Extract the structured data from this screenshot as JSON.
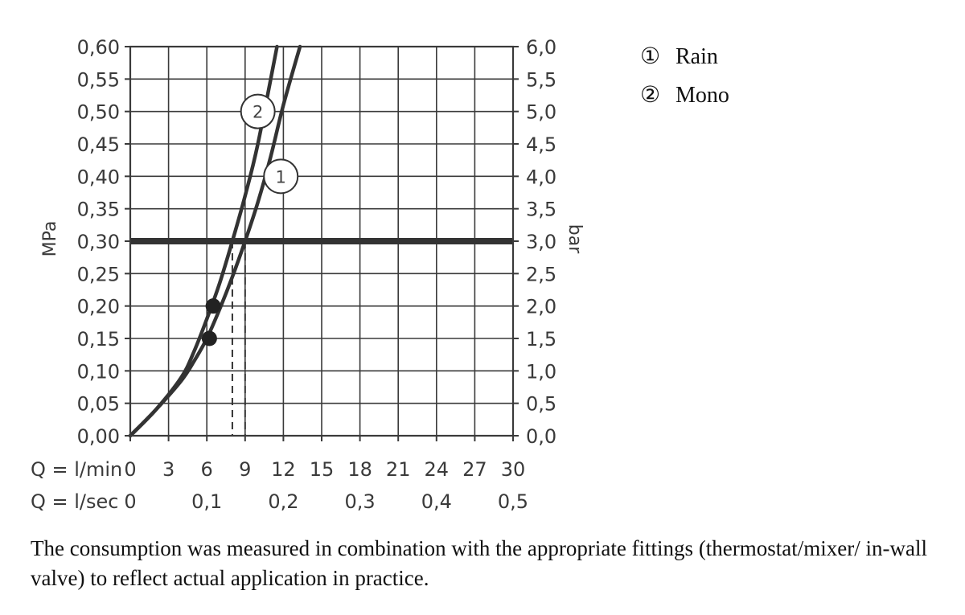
{
  "chart_data": {
    "type": "line",
    "title": "",
    "left_axis": {
      "label": "MPa",
      "range": [
        0,
        0.6
      ],
      "ticks": [
        "0,00",
        "0,05",
        "0,10",
        "0,15",
        "0,20",
        "0,25",
        "0,30",
        "0,35",
        "0,40",
        "0,45",
        "0,50",
        "0,55",
        "0,60"
      ]
    },
    "right_axis": {
      "label": "bar",
      "range": [
        0,
        6
      ],
      "ticks": [
        "0,0",
        "0,5",
        "1,0",
        "1,5",
        "2,0",
        "2,5",
        "3,0",
        "3,5",
        "4,0",
        "4,5",
        "5,0",
        "5,5",
        "6,0"
      ]
    },
    "x_axis": {
      "range": [
        0,
        30
      ],
      "rows": [
        {
          "label": "Q = l/min",
          "ticks": [
            {
              "x": 0,
              "text": "0"
            },
            {
              "x": 3,
              "text": "3"
            },
            {
              "x": 6,
              "text": "6"
            },
            {
              "x": 9,
              "text": "9"
            },
            {
              "x": 12,
              "text": "12"
            },
            {
              "x": 15,
              "text": "15"
            },
            {
              "x": 18,
              "text": "18"
            },
            {
              "x": 21,
              "text": "21"
            },
            {
              "x": 24,
              "text": "24"
            },
            {
              "x": 27,
              "text": "27"
            },
            {
              "x": 30,
              "text": "30"
            }
          ]
        },
        {
          "label": "Q = l/sec",
          "ticks": [
            {
              "x": 0,
              "text": "0"
            },
            {
              "x": 6,
              "text": "0,1"
            },
            {
              "x": 12,
              "text": "0,2"
            },
            {
              "x": 18,
              "text": "0,3"
            },
            {
              "x": 24,
              "text": "0,4"
            },
            {
              "x": 30,
              "text": "0,5"
            }
          ]
        }
      ]
    },
    "grid": true,
    "reference_line": {
      "pressure_mpa": 0.3
    },
    "series": [
      {
        "name": "Rain",
        "marker": "1",
        "color": "#333333",
        "x": [
          0,
          2,
          4,
          5,
          6,
          7,
          8,
          9,
          10,
          11,
          12,
          13.3
        ],
        "y": [
          0,
          0.04,
          0.085,
          0.115,
          0.15,
          0.195,
          0.245,
          0.3,
          0.36,
          0.43,
          0.51,
          0.6
        ],
        "operating_point": {
          "x": 6.2,
          "y": 0.15
        },
        "flow_at_reference": 9.0,
        "label_at": {
          "x": 11.8,
          "y": 0.4
        }
      },
      {
        "name": "Mono",
        "marker": "2",
        "color": "#333333",
        "x": [
          0,
          2,
          4,
          5,
          6,
          7,
          8,
          9,
          10,
          11.5
        ],
        "y": [
          0,
          0.04,
          0.09,
          0.13,
          0.18,
          0.235,
          0.3,
          0.37,
          0.45,
          0.6
        ],
        "operating_point": {
          "x": 6.5,
          "y": 0.2
        },
        "flow_at_reference": 8.0,
        "label_at": {
          "x": 10.0,
          "y": 0.5
        }
      }
    ],
    "legend": [
      {
        "marker": "①",
        "name": "Rain"
      },
      {
        "marker": "②",
        "name": "Mono"
      }
    ]
  },
  "footnote": "The consumption was measured in combination with the appropriate fittings (thermostat/mixer/ in-wall valve) to reflect actual application in practice."
}
